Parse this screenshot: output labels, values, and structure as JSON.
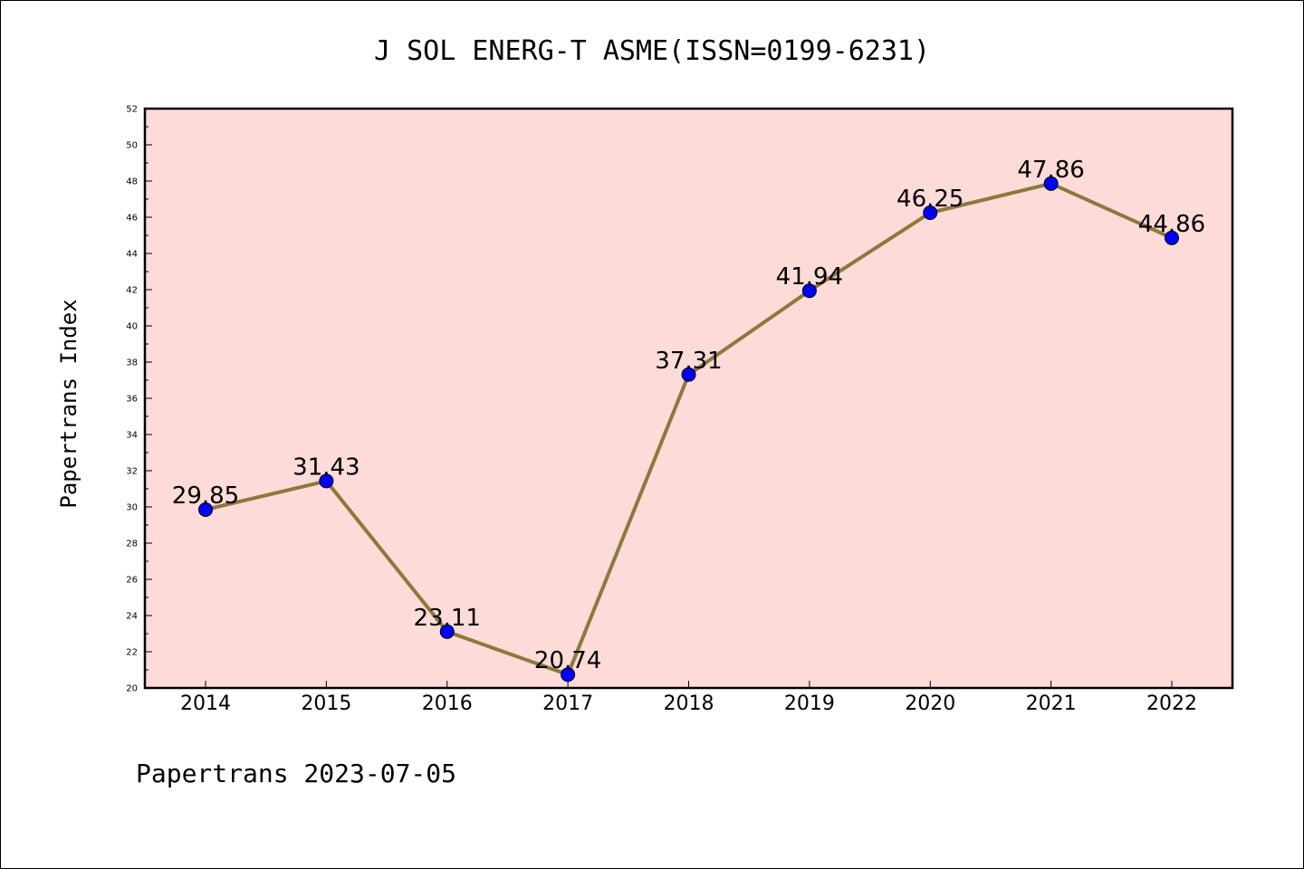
{
  "chart_data": {
    "type": "line",
    "title": "J SOL ENERG-T ASME(ISSN=0199-6231)",
    "ylabel": "Papertrans Index",
    "xlabel": "",
    "x": [
      "2014",
      "2015",
      "2016",
      "2017",
      "2018",
      "2019",
      "2020",
      "2021",
      "2022"
    ],
    "series": [
      {
        "values": [
          29.85,
          31.43,
          23.11,
          20.74,
          37.31,
          41.94,
          46.25,
          47.86,
          44.86
        ],
        "labels": [
          "29.85",
          "31.43",
          "23.11",
          "20.74",
          "37.31",
          "41.94",
          "46.25",
          "47.86",
          "44.86"
        ]
      }
    ],
    "ylim": [
      20,
      52
    ],
    "yticks": [
      "20",
      "22",
      "24",
      "26",
      "28",
      "30",
      "32",
      "34",
      "36",
      "38",
      "40",
      "42",
      "44",
      "46",
      "48",
      "50",
      "52"
    ],
    "grid": false,
    "legend": "none",
    "colors": {
      "plot_background": "#fddbd8",
      "line": "#8b7a3a",
      "marker": "#0000ff"
    }
  },
  "footer": "Papertrans 2023-07-05"
}
